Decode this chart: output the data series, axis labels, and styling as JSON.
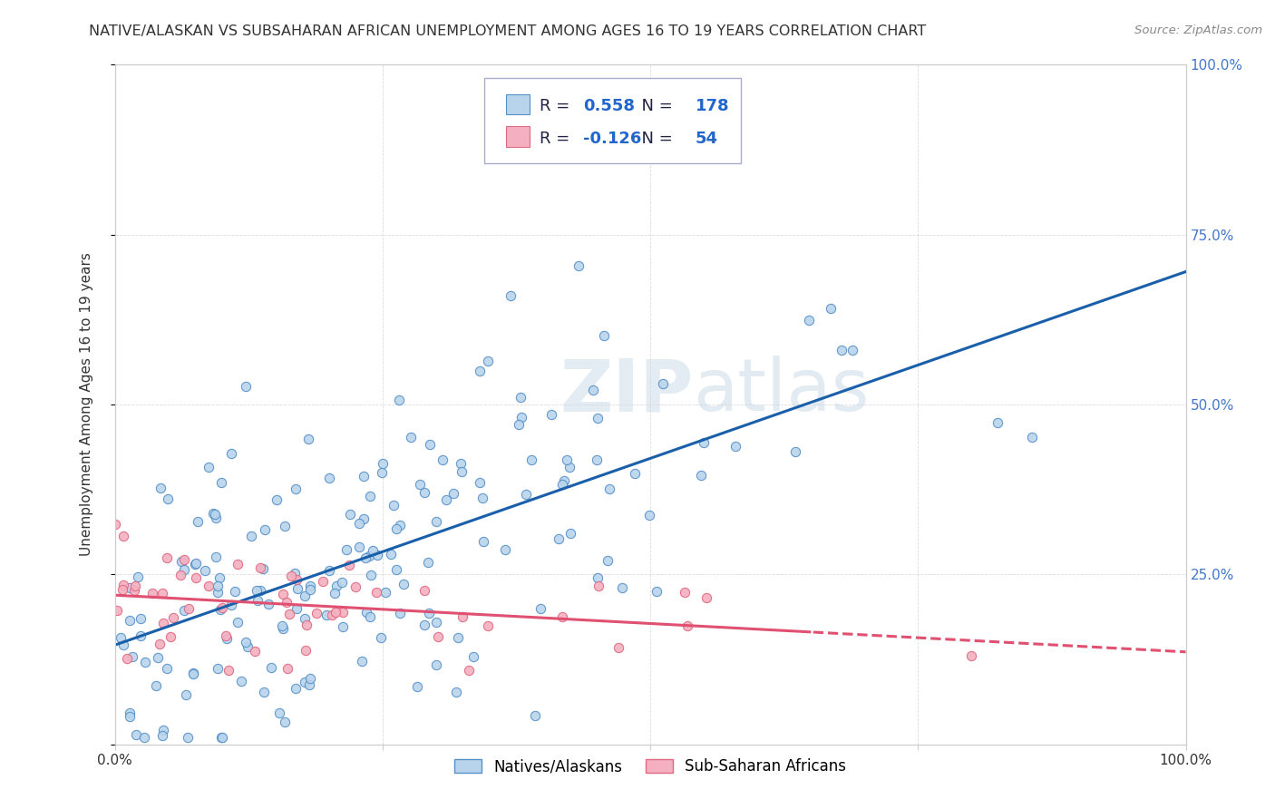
{
  "title": "NATIVE/ALASKAN VS SUBSAHARAN AFRICAN UNEMPLOYMENT AMONG AGES 16 TO 19 YEARS CORRELATION CHART",
  "source": "Source: ZipAtlas.com",
  "ylabel": "Unemployment Among Ages 16 to 19 years",
  "xlim": [
    0.0,
    1.0
  ],
  "ylim": [
    0.0,
    1.0
  ],
  "xticks": [
    0.0,
    0.25,
    0.5,
    0.75,
    1.0
  ],
  "xticklabels": [
    "0.0%",
    "",
    "",
    "",
    "100.0%"
  ],
  "right_yticks": [
    0.25,
    0.5,
    0.75,
    1.0
  ],
  "right_yticklabels": [
    "25.0%",
    "50.0%",
    "75.0%",
    "100.0%"
  ],
  "blue_R": 0.558,
  "blue_N": 178,
  "pink_R": -0.126,
  "pink_N": 54,
  "blue_color": "#b8d4ed",
  "pink_color": "#f4b0c0",
  "blue_edge_color": "#5590c8",
  "pink_edge_color": "#e06880",
  "blue_line_color": "#1a5faa",
  "pink_line_color": "#e05070",
  "legend_label_blue": "Natives/Alaskans",
  "legend_label_pink": "Sub-Saharan Africans",
  "watermark_bold": "ZIP",
  "watermark_light": "atlas",
  "background_color": "#ffffff",
  "grid_color": "#cccccc",
  "right_tick_color": "#4477cc",
  "title_color": "#333333",
  "source_color": "#888888"
}
